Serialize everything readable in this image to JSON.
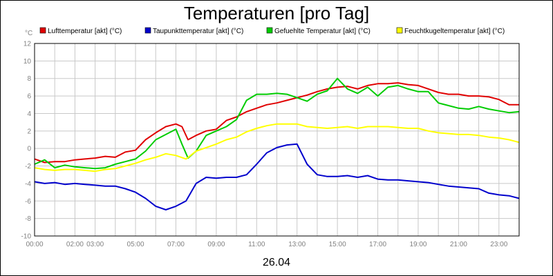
{
  "chart_data": {
    "type": "line",
    "title": "Temperaturen [pro Tag]",
    "ylabel": "°C",
    "xlabel": "26.04",
    "ylim": [
      -10,
      12
    ],
    "xlim": [
      0,
      24
    ],
    "grid": true,
    "legend_position": "top",
    "y_ticks": [
      "12",
      "10",
      "8",
      "6",
      "4",
      "2",
      "0",
      "-2",
      "-4",
      "-6",
      "-8",
      "-10"
    ],
    "x_ticks": [
      {
        "x": 0,
        "label": "00:00"
      },
      {
        "x": 2,
        "label": "02:00"
      },
      {
        "x": 3,
        "label": "03:00"
      },
      {
        "x": 5,
        "label": "05:00"
      },
      {
        "x": 7,
        "label": "07:00"
      },
      {
        "x": 9,
        "label": "09:00"
      },
      {
        "x": 11,
        "label": "11:00"
      },
      {
        "x": 13,
        "label": "13:00"
      },
      {
        "x": 15,
        "label": "15:00"
      },
      {
        "x": 17,
        "label": "17:00"
      },
      {
        "x": 19,
        "label": "19:00"
      },
      {
        "x": 21,
        "label": "21:00"
      },
      {
        "x": 23,
        "label": "23:00"
      }
    ],
    "series": [
      {
        "name": "Lufttemperatur [akt] (°C)",
        "color": "#e00000",
        "points": [
          [
            0,
            -1.2
          ],
          [
            0.5,
            -1.6
          ],
          [
            1,
            -1.5
          ],
          [
            1.5,
            -1.5
          ],
          [
            2,
            -1.3
          ],
          [
            2.5,
            -1.2
          ],
          [
            3,
            -1.1
          ],
          [
            3.5,
            -0.9
          ],
          [
            4,
            -1.0
          ],
          [
            4.5,
            -0.4
          ],
          [
            5,
            -0.2
          ],
          [
            5.5,
            1.0
          ],
          [
            6,
            1.8
          ],
          [
            6.5,
            2.5
          ],
          [
            7,
            2.8
          ],
          [
            7.3,
            2.5
          ],
          [
            7.6,
            1.0
          ],
          [
            8,
            1.5
          ],
          [
            8.5,
            2.0
          ],
          [
            9,
            2.2
          ],
          [
            9.5,
            3.2
          ],
          [
            10,
            3.6
          ],
          [
            10.5,
            4.2
          ],
          [
            11,
            4.6
          ],
          [
            11.5,
            5.0
          ],
          [
            12,
            5.2
          ],
          [
            12.5,
            5.5
          ],
          [
            13,
            5.8
          ],
          [
            13.5,
            6.1
          ],
          [
            14,
            6.5
          ],
          [
            14.5,
            6.8
          ],
          [
            15,
            7.0
          ],
          [
            15.5,
            7.1
          ],
          [
            16,
            6.8
          ],
          [
            16.5,
            7.2
          ],
          [
            17,
            7.4
          ],
          [
            17.5,
            7.4
          ],
          [
            18,
            7.5
          ],
          [
            18.5,
            7.3
          ],
          [
            19,
            7.2
          ],
          [
            19.5,
            6.8
          ],
          [
            20,
            6.4
          ],
          [
            20.5,
            6.2
          ],
          [
            21,
            6.2
          ],
          [
            21.5,
            6.0
          ],
          [
            22,
            6.0
          ],
          [
            22.5,
            5.9
          ],
          [
            23,
            5.6
          ],
          [
            23.5,
            5.0
          ],
          [
            24,
            5.0
          ]
        ]
      },
      {
        "name": "Taupunkttemperatur [akt] (°C)",
        "color": "#0000cc",
        "points": [
          [
            0,
            -3.8
          ],
          [
            0.5,
            -4.0
          ],
          [
            1,
            -3.9
          ],
          [
            1.5,
            -4.1
          ],
          [
            2,
            -4.0
          ],
          [
            2.5,
            -4.1
          ],
          [
            3,
            -4.2
          ],
          [
            3.5,
            -4.3
          ],
          [
            4,
            -4.3
          ],
          [
            4.5,
            -4.6
          ],
          [
            5,
            -5.0
          ],
          [
            5.5,
            -5.7
          ],
          [
            6,
            -6.6
          ],
          [
            6.5,
            -7.0
          ],
          [
            7,
            -6.6
          ],
          [
            7.5,
            -6.0
          ],
          [
            8,
            -4.0
          ],
          [
            8.5,
            -3.3
          ],
          [
            9,
            -3.4
          ],
          [
            9.5,
            -3.3
          ],
          [
            10,
            -3.3
          ],
          [
            10.5,
            -3.0
          ],
          [
            11,
            -1.8
          ],
          [
            11.5,
            -0.5
          ],
          [
            12,
            0.1
          ],
          [
            12.5,
            0.4
          ],
          [
            13,
            0.5
          ],
          [
            13.5,
            -1.8
          ],
          [
            14,
            -3.0
          ],
          [
            14.5,
            -3.2
          ],
          [
            15,
            -3.2
          ],
          [
            15.5,
            -3.1
          ],
          [
            16,
            -3.3
          ],
          [
            16.5,
            -3.1
          ],
          [
            17,
            -3.5
          ],
          [
            17.5,
            -3.6
          ],
          [
            18,
            -3.6
          ],
          [
            18.5,
            -3.7
          ],
          [
            19,
            -3.8
          ],
          [
            19.5,
            -3.9
          ],
          [
            20,
            -4.1
          ],
          [
            20.5,
            -4.3
          ],
          [
            21,
            -4.4
          ],
          [
            21.5,
            -4.5
          ],
          [
            22,
            -4.6
          ],
          [
            22.5,
            -5.1
          ],
          [
            23,
            -5.3
          ],
          [
            23.5,
            -5.4
          ],
          [
            24,
            -5.7
          ]
        ]
      },
      {
        "name": "Gefuehlte Temperatur [akt] (°C)",
        "color": "#00cc00",
        "points": [
          [
            0,
            -1.8
          ],
          [
            0.5,
            -1.3
          ],
          [
            1,
            -2.2
          ],
          [
            1.5,
            -1.9
          ],
          [
            2,
            -2.1
          ],
          [
            2.5,
            -2.2
          ],
          [
            3,
            -2.3
          ],
          [
            3.5,
            -2.2
          ],
          [
            4,
            -1.8
          ],
          [
            4.5,
            -1.5
          ],
          [
            5,
            -1.2
          ],
          [
            5.5,
            -0.3
          ],
          [
            6,
            1.0
          ],
          [
            6.5,
            1.6
          ],
          [
            7,
            2.2
          ],
          [
            7.3,
            0.5
          ],
          [
            7.6,
            -1.1
          ],
          [
            8,
            -0.3
          ],
          [
            8.5,
            1.5
          ],
          [
            9,
            2.0
          ],
          [
            9.5,
            2.5
          ],
          [
            10,
            3.3
          ],
          [
            10.5,
            5.5
          ],
          [
            11,
            6.2
          ],
          [
            11.5,
            6.2
          ],
          [
            12,
            6.3
          ],
          [
            12.5,
            6.2
          ],
          [
            13,
            5.8
          ],
          [
            13.5,
            5.4
          ],
          [
            14,
            6.2
          ],
          [
            14.5,
            6.6
          ],
          [
            15,
            8.0
          ],
          [
            15.5,
            6.8
          ],
          [
            16,
            6.3
          ],
          [
            16.5,
            7.0
          ],
          [
            17,
            6.0
          ],
          [
            17.5,
            7.0
          ],
          [
            18,
            7.2
          ],
          [
            18.5,
            6.8
          ],
          [
            19,
            6.5
          ],
          [
            19.5,
            6.5
          ],
          [
            20,
            5.2
          ],
          [
            20.5,
            4.9
          ],
          [
            21,
            4.6
          ],
          [
            21.5,
            4.5
          ],
          [
            22,
            4.8
          ],
          [
            22.5,
            4.5
          ],
          [
            23,
            4.3
          ],
          [
            23.5,
            4.1
          ],
          [
            24,
            4.2
          ]
        ]
      },
      {
        "name": "Feuchtkugeltemperatur [akt] (°C)",
        "color": "#ffff00",
        "points": [
          [
            0,
            -2.2
          ],
          [
            0.5,
            -2.4
          ],
          [
            1,
            -2.5
          ],
          [
            1.5,
            -2.4
          ],
          [
            2,
            -2.4
          ],
          [
            2.5,
            -2.5
          ],
          [
            3,
            -2.6
          ],
          [
            3.5,
            -2.4
          ],
          [
            4,
            -2.3
          ],
          [
            4.5,
            -2.0
          ],
          [
            5,
            -1.7
          ],
          [
            5.5,
            -1.3
          ],
          [
            6,
            -1.0
          ],
          [
            6.5,
            -0.6
          ],
          [
            7,
            -0.8
          ],
          [
            7.5,
            -1.2
          ],
          [
            8,
            -0.3
          ],
          [
            8.5,
            0.1
          ],
          [
            9,
            0.5
          ],
          [
            9.5,
            1.0
          ],
          [
            10,
            1.3
          ],
          [
            10.5,
            1.9
          ],
          [
            11,
            2.3
          ],
          [
            11.5,
            2.6
          ],
          [
            12,
            2.8
          ],
          [
            12.5,
            2.8
          ],
          [
            13,
            2.8
          ],
          [
            13.5,
            2.5
          ],
          [
            14,
            2.4
          ],
          [
            14.5,
            2.3
          ],
          [
            15,
            2.4
          ],
          [
            15.5,
            2.5
          ],
          [
            16,
            2.3
          ],
          [
            16.5,
            2.5
          ],
          [
            17,
            2.5
          ],
          [
            17.5,
            2.5
          ],
          [
            18,
            2.4
          ],
          [
            18.5,
            2.3
          ],
          [
            19,
            2.3
          ],
          [
            19.5,
            2.0
          ],
          [
            20,
            1.8
          ],
          [
            20.5,
            1.7
          ],
          [
            21,
            1.6
          ],
          [
            21.5,
            1.6
          ],
          [
            22,
            1.5
          ],
          [
            22.5,
            1.3
          ],
          [
            23,
            1.2
          ],
          [
            23.5,
            1.0
          ],
          [
            24,
            0.7
          ]
        ]
      }
    ]
  }
}
